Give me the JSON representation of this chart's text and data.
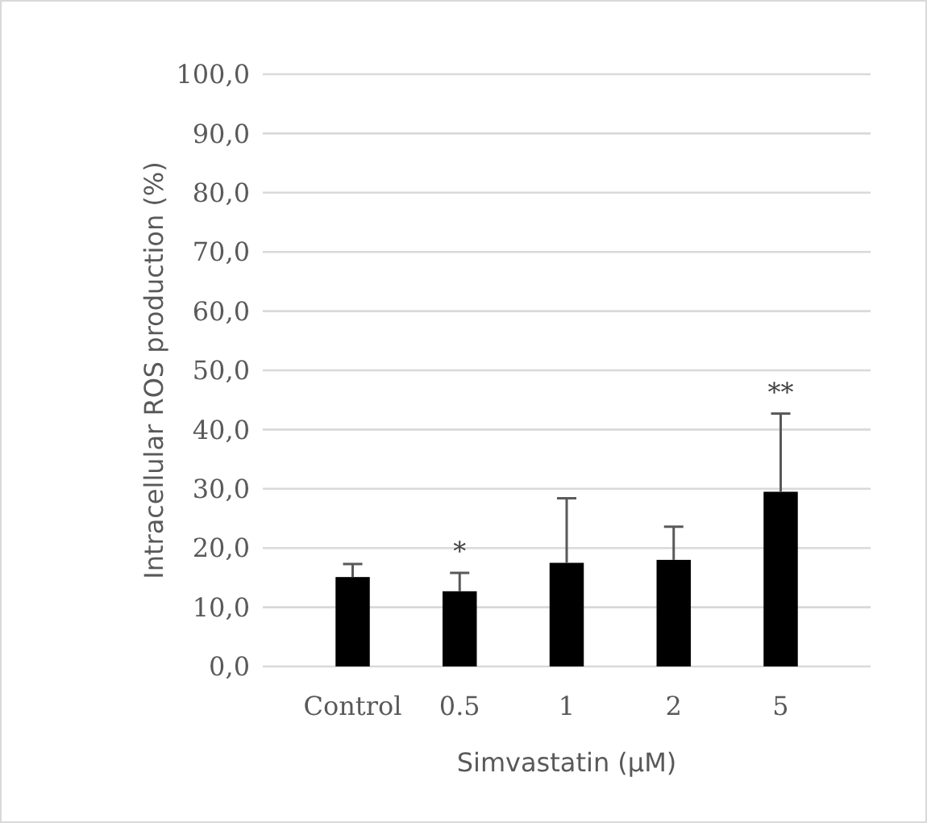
{
  "chart_data": {
    "type": "bar",
    "xlabel": "Simvastatin (µM)",
    "ylabel": "Intracellular ROS production (%)",
    "categories": [
      "Control",
      "0.5",
      "1",
      "2",
      "5"
    ],
    "values": [
      15.1,
      12.7,
      17.5,
      18.0,
      29.5
    ],
    "errors": [
      [
        15.1,
        17.3
      ],
      [
        12.7,
        15.8
      ],
      [
        17.5,
        28.4
      ],
      [
        18.0,
        23.6
      ],
      [
        29.5,
        42.7
      ]
    ],
    "color": "#000000",
    "ylim": [
      0,
      100
    ],
    "yticks": [
      {
        "value": 0,
        "label": "0,0"
      },
      {
        "value": 10,
        "label": "10,0"
      },
      {
        "value": 20,
        "label": "20,0"
      },
      {
        "value": 30,
        "label": "30,0"
      },
      {
        "value": 40,
        "label": "40,0"
      },
      {
        "value": 50,
        "label": "50,0"
      },
      {
        "value": 60,
        "label": "60,0"
      },
      {
        "value": 70,
        "label": "70,0"
      },
      {
        "value": 80,
        "label": "80,0"
      },
      {
        "value": 90,
        "label": "90,0"
      },
      {
        "value": 100,
        "label": "100,0"
      }
    ],
    "grid": "y",
    "annotations": [
      {
        "text": "*",
        "x": "0.5",
        "y": 15.8
      },
      {
        "text": "**",
        "x": "5",
        "y": 42.7
      }
    ]
  }
}
